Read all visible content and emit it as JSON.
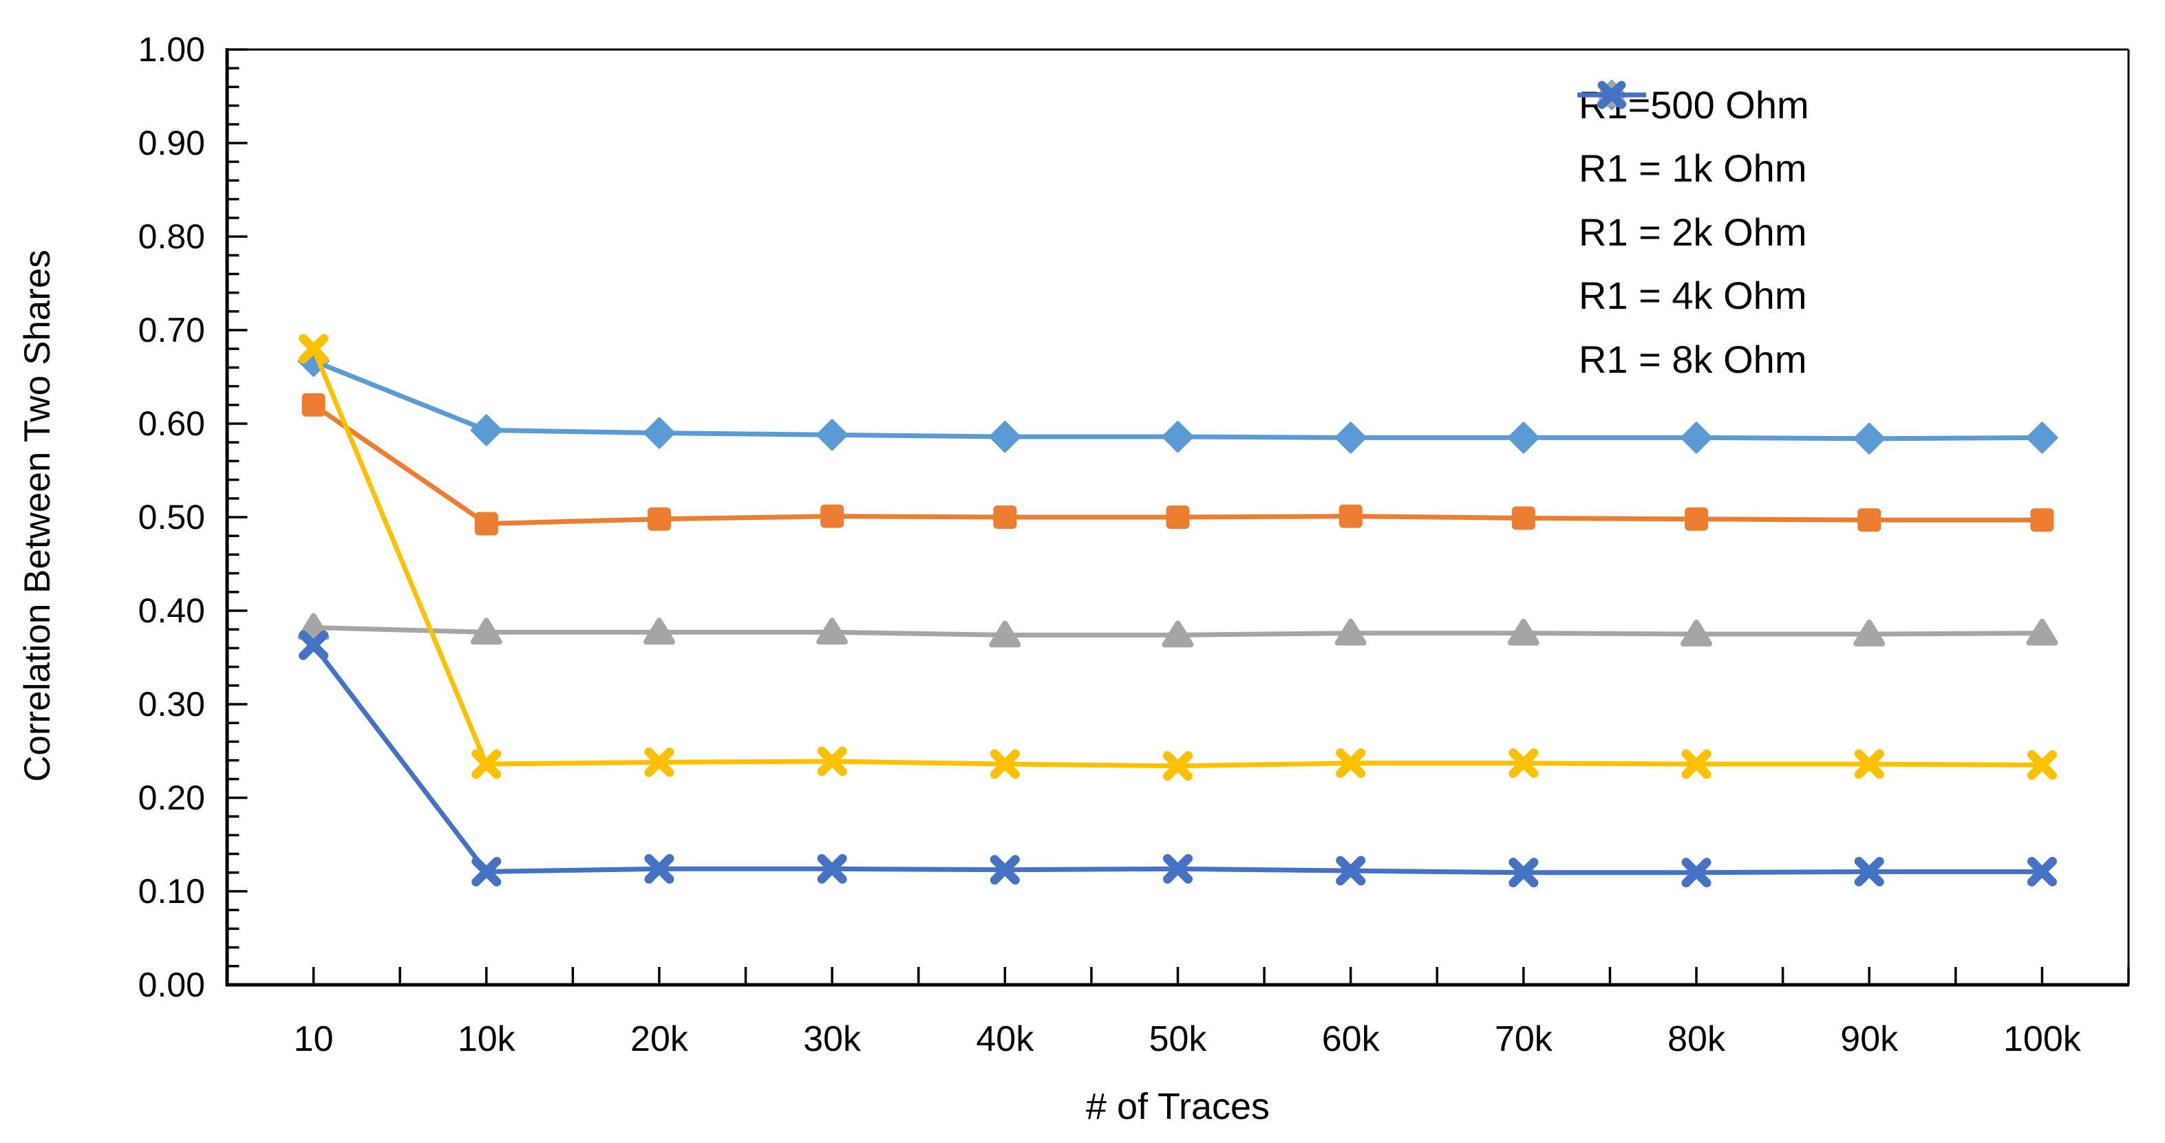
{
  "chart_data": {
    "type": "line",
    "title": "",
    "categories": [
      "10",
      "10k",
      "20k",
      "30k",
      "40k",
      "50k",
      "60k",
      "70k",
      "80k",
      "90k",
      "100k"
    ],
    "series": [
      {
        "name": "R1=500 Ohm",
        "color": "#5B9BD5",
        "marker": "diamond",
        "values": [
          0.667,
          0.593,
          0.59,
          0.588,
          0.586,
          0.586,
          0.585,
          0.585,
          0.585,
          0.584,
          0.585
        ]
      },
      {
        "name": "R1 = 1k Ohm",
        "color": "#ED7D31",
        "marker": "square",
        "values": [
          0.62,
          0.493,
          0.498,
          0.501,
          0.5,
          0.5,
          0.501,
          0.499,
          0.498,
          0.497,
          0.497
        ]
      },
      {
        "name": "R1 = 2k Ohm",
        "color": "#A5A5A5",
        "marker": "triangle",
        "values": [
          0.382,
          0.377,
          0.377,
          0.377,
          0.374,
          0.374,
          0.376,
          0.376,
          0.375,
          0.375,
          0.376
        ]
      },
      {
        "name": "R1 = 4k Ohm",
        "color": "#FFC000",
        "marker": "x",
        "values": [
          0.68,
          0.236,
          0.238,
          0.239,
          0.236,
          0.234,
          0.237,
          0.237,
          0.236,
          0.236,
          0.235
        ]
      },
      {
        "name": "R1 = 8k Ohm",
        "color": "#4472C4",
        "marker": "x",
        "values": [
          0.363,
          0.121,
          0.124,
          0.124,
          0.123,
          0.124,
          0.122,
          0.12,
          0.12,
          0.121,
          0.121
        ]
      }
    ],
    "xlabel": "# of Traces",
    "ylabel": "Correlation Between Two Shares",
    "ylim": [
      0.0,
      1.0
    ],
    "y_major_step": 0.1,
    "y_minor_step": 0.02,
    "y_tick_labels": [
      "0.00",
      "0.10",
      "0.20",
      "0.30",
      "0.40",
      "0.50",
      "0.60",
      "0.70",
      "0.80",
      "0.90",
      "1.00"
    ],
    "grid": false,
    "legend_position": "top-right-inside",
    "tick_style": "inside",
    "axis_color": "#000000",
    "background_color": "#FFFFFF"
  }
}
